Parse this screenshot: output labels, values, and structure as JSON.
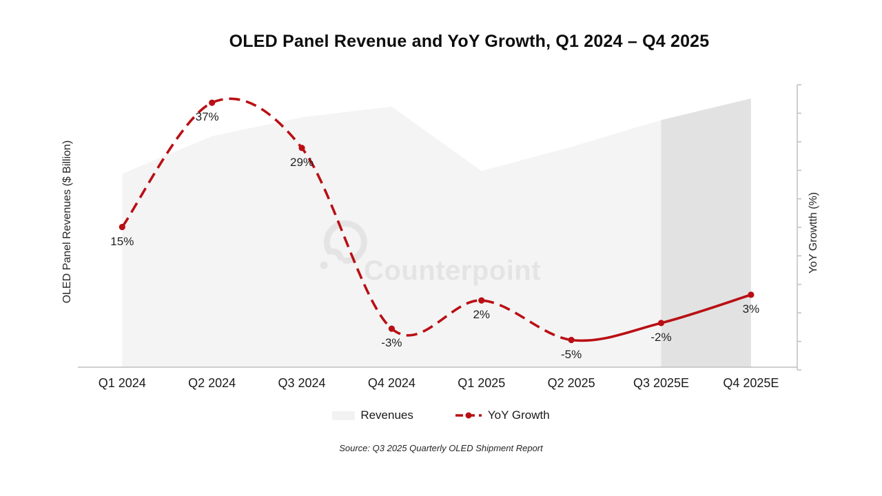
{
  "title": "OLED Panel Revenue and YoY Growth, Q1 2024 – Q4 2025",
  "axes": {
    "left_title": "OLED Panel Revenues ($ Billion)",
    "right_title": "YoY Growtth (%)"
  },
  "legend": {
    "revenues_label": "Revenues",
    "yoy_label": "YoY Growth"
  },
  "watermark": {
    "text": "Counterpoint"
  },
  "source": "Source: Q3 2025 Quarterly OLED Shipment Report",
  "chart_data": {
    "type": "combo (area + line)",
    "categories": [
      "Q1 2024",
      "Q2 2024",
      "Q3 2024",
      "Q4 2024",
      "Q1 2025",
      "Q2 2025",
      "Q3 2025E",
      "Q4 2025E"
    ],
    "series": [
      {
        "name": "Revenues",
        "type": "area",
        "axis": "left",
        "values_relative": [
          72,
          86,
          93,
          97,
          73,
          82,
          92,
          100
        ],
        "note": "left axis has no tick labels; values are relative index with Q4 2025E = 100",
        "forecast_from_index": 6
      },
      {
        "name": "YoY Growth",
        "type": "line",
        "axis": "right",
        "values_pct": [
          15,
          37,
          29,
          -3,
          2,
          -5,
          -2,
          3
        ],
        "labels": [
          "15%",
          "37%",
          "29%",
          "-3%",
          "2%",
          "-5%",
          "-2%",
          "3%"
        ],
        "solid_from_index": 5
      }
    ],
    "right_axis": {
      "min": -10,
      "max": 40,
      "tick_step": 5,
      "tick_labels_shown": false
    },
    "xlabel": "",
    "ylabel_left": "OLED Panel Revenues ($ Billion)",
    "ylabel_right": "YoY Growtth (%)",
    "grid": false,
    "legend_position": "bottom",
    "colors": {
      "line_red": "#b90f14",
      "area_light": "#f4f4f4",
      "area_forecast": "#e2e2e2",
      "axis_gray": "#bfbfbf",
      "watermark_gray": "#e4e4e4"
    }
  }
}
